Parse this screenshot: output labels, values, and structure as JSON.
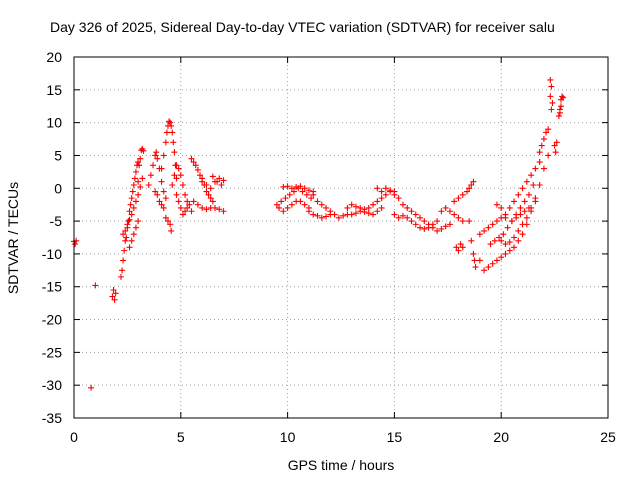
{
  "chart_data": {
    "type": "scatter",
    "title": "Day 326 of 2025, Sidereal Day-to-day VTEC variation (SDTVAR) for receiver salu",
    "xlabel": "GPS time / hours",
    "ylabel": "SDTVAR / TECUs",
    "xlim": [
      0,
      25
    ],
    "ylim": [
      -35,
      20
    ],
    "xticks": [
      0,
      5,
      10,
      15,
      20,
      25
    ],
    "xtick_labels": [
      "0",
      "5",
      "10",
      "15",
      "20",
      "25"
    ],
    "yticks": [
      20,
      15,
      10,
      5,
      0,
      -5,
      -10,
      -15,
      -20,
      -25,
      -30,
      -35
    ],
    "ytick_labels": [
      "20",
      "15",
      "10",
      "5",
      "0",
      "-5",
      "-10",
      "-15",
      "-20",
      "-25",
      "-30",
      "-35"
    ],
    "grid": true,
    "marker": "+",
    "series_color": "#ff0000",
    "series": [
      {
        "name": "SDTVAR",
        "points": [
          [
            0.0,
            -8.1
          ],
          [
            0.05,
            -8.5
          ],
          [
            0.1,
            -8.0
          ],
          [
            0.8,
            -30.4
          ],
          [
            1.0,
            -14.8
          ],
          [
            1.8,
            -16.5
          ],
          [
            1.85,
            -15.5
          ],
          [
            1.9,
            -17.0
          ],
          [
            1.95,
            -16.0
          ],
          [
            2.2,
            -13.5
          ],
          [
            2.25,
            -12.5
          ],
          [
            2.3,
            -11.0
          ],
          [
            2.35,
            -9.5
          ],
          [
            2.4,
            -8.0
          ],
          [
            2.45,
            -7.5
          ],
          [
            2.5,
            -6.0
          ],
          [
            2.55,
            -5.0
          ],
          [
            2.6,
            -3.5
          ],
          [
            2.65,
            -2.5
          ],
          [
            2.7,
            -1.5
          ],
          [
            2.75,
            -0.5
          ],
          [
            2.8,
            0.5
          ],
          [
            2.85,
            1.5
          ],
          [
            2.9,
            2.5
          ],
          [
            2.95,
            3.5
          ],
          [
            3.0,
            4.0
          ],
          [
            2.3,
            -7.0
          ],
          [
            2.4,
            -6.5
          ],
          [
            2.5,
            -5.5
          ],
          [
            2.6,
            -4.8
          ],
          [
            2.7,
            -4.0
          ],
          [
            2.8,
            -3.0
          ],
          [
            2.9,
            -2.0
          ],
          [
            3.0,
            -1.0
          ],
          [
            3.1,
            0.2
          ],
          [
            3.2,
            1.5
          ],
          [
            2.6,
            -9.0
          ],
          [
            2.7,
            -8.0
          ],
          [
            2.8,
            -7.0
          ],
          [
            2.9,
            -6.0
          ],
          [
            3.0,
            -5.0
          ],
          [
            3.0,
            1.0
          ],
          [
            3.05,
            3.5
          ],
          [
            3.1,
            4.5
          ],
          [
            3.15,
            5.8
          ],
          [
            3.2,
            6.0
          ],
          [
            3.25,
            5.7
          ],
          [
            3.5,
            0.5
          ],
          [
            3.6,
            2.0
          ],
          [
            3.7,
            3.5
          ],
          [
            3.8,
            5.0
          ],
          [
            3.85,
            5.5
          ],
          [
            3.9,
            4.5
          ],
          [
            4.0,
            3.0
          ],
          [
            4.1,
            1.0
          ],
          [
            4.2,
            -0.5
          ],
          [
            4.3,
            -1.5
          ],
          [
            3.8,
            -0.5
          ],
          [
            3.9,
            -1.0
          ],
          [
            4.0,
            -2.0
          ],
          [
            4.1,
            -2.5
          ],
          [
            4.2,
            -3.0
          ],
          [
            4.3,
            -4.5
          ],
          [
            4.4,
            -5.0
          ],
          [
            4.5,
            -5.5
          ],
          [
            4.55,
            -6.5
          ],
          [
            4.1,
            3.0
          ],
          [
            4.2,
            5.0
          ],
          [
            4.3,
            7.0
          ],
          [
            4.35,
            8.5
          ],
          [
            4.4,
            9.5
          ],
          [
            4.45,
            10.2
          ],
          [
            4.5,
            10.0
          ],
          [
            4.55,
            9.5
          ],
          [
            4.6,
            8.5
          ],
          [
            4.65,
            7.0
          ],
          [
            4.7,
            5.5
          ],
          [
            4.75,
            3.5
          ],
          [
            4.8,
            1.5
          ],
          [
            4.6,
            0.5
          ],
          [
            4.7,
            2.0
          ],
          [
            4.8,
            3.5
          ],
          [
            4.9,
            3.0
          ],
          [
            5.0,
            2.0
          ],
          [
            5.1,
            0.5
          ],
          [
            5.2,
            -1.0
          ],
          [
            5.3,
            -2.0
          ],
          [
            5.4,
            -2.5
          ],
          [
            5.5,
            -3.5
          ],
          [
            4.8,
            -1.0
          ],
          [
            4.9,
            -2.0
          ],
          [
            5.0,
            -3.0
          ],
          [
            5.1,
            -4.0
          ],
          [
            5.2,
            -3.5
          ],
          [
            5.3,
            -3.0
          ],
          [
            5.5,
            4.5
          ],
          [
            5.6,
            4.0
          ],
          [
            5.7,
            3.5
          ],
          [
            5.8,
            2.8
          ],
          [
            5.9,
            2.0
          ],
          [
            6.0,
            1.5
          ],
          [
            6.1,
            0.5
          ],
          [
            6.2,
            -0.5
          ],
          [
            6.3,
            -1.0
          ],
          [
            6.4,
            -1.5
          ],
          [
            6.5,
            -2.0
          ],
          [
            5.6,
            -2.0
          ],
          [
            5.8,
            -2.5
          ],
          [
            6.0,
            -3.0
          ],
          [
            6.2,
            -3.2
          ],
          [
            6.4,
            -3.0
          ],
          [
            6.6,
            -3.0
          ],
          [
            6.8,
            -3.2
          ],
          [
            7.0,
            -3.5
          ],
          [
            6.0,
            1.0
          ],
          [
            6.2,
            0.5
          ],
          [
            6.4,
            0.0
          ],
          [
            6.6,
            1.0
          ],
          [
            6.8,
            1.5
          ],
          [
            7.0,
            1.2
          ],
          [
            6.5,
            1.8
          ],
          [
            6.7,
            1.0
          ],
          [
            6.9,
            0.5
          ],
          [
            9.5,
            -2.5
          ],
          [
            9.7,
            -2.0
          ],
          [
            9.9,
            -1.5
          ],
          [
            10.1,
            -1.0
          ],
          [
            10.3,
            -0.5
          ],
          [
            10.5,
            0.0
          ],
          [
            10.7,
            -0.5
          ],
          [
            10.9,
            -1.0
          ],
          [
            11.1,
            -1.5
          ],
          [
            9.6,
            -3.0
          ],
          [
            9.8,
            -3.5
          ],
          [
            10.0,
            -3.0
          ],
          [
            10.2,
            -2.5
          ],
          [
            10.4,
            -2.0
          ],
          [
            10.6,
            -2.0
          ],
          [
            10.8,
            -2.5
          ],
          [
            11.0,
            -3.0
          ],
          [
            9.8,
            0.2
          ],
          [
            10.0,
            0.3
          ],
          [
            10.2,
            0.0
          ],
          [
            10.4,
            0.2
          ],
          [
            10.6,
            0.3
          ],
          [
            10.8,
            0.0
          ],
          [
            11.0,
            -0.3
          ],
          [
            11.2,
            -0.5
          ],
          [
            11.2,
            -1.0
          ],
          [
            11.4,
            -2.0
          ],
          [
            11.6,
            -2.5
          ],
          [
            11.8,
            -3.0
          ],
          [
            12.0,
            -3.5
          ],
          [
            12.2,
            -4.0
          ],
          [
            12.4,
            -4.5
          ],
          [
            12.6,
            -4.2
          ],
          [
            12.8,
            -4.0
          ],
          [
            11.0,
            -3.5
          ],
          [
            11.2,
            -4.0
          ],
          [
            11.4,
            -4.2
          ],
          [
            11.6,
            -4.5
          ],
          [
            11.8,
            -4.3
          ],
          [
            12.0,
            -4.0
          ],
          [
            12.8,
            -3.0
          ],
          [
            13.0,
            -2.5
          ],
          [
            13.2,
            -2.8
          ],
          [
            13.4,
            -3.0
          ],
          [
            13.6,
            -3.2
          ],
          [
            13.8,
            -3.0
          ],
          [
            14.0,
            -2.5
          ],
          [
            14.2,
            -2.0
          ],
          [
            14.4,
            -1.5
          ],
          [
            14.6,
            -1.0
          ],
          [
            14.8,
            -0.5
          ],
          [
            15.0,
            -1.0
          ],
          [
            13.0,
            -4.0
          ],
          [
            13.2,
            -3.8
          ],
          [
            13.4,
            -3.5
          ],
          [
            13.6,
            -3.6
          ],
          [
            13.8,
            -3.8
          ],
          [
            14.0,
            -4.0
          ],
          [
            14.2,
            -3.5
          ],
          [
            14.4,
            -3.0
          ],
          [
            14.2,
            0.0
          ],
          [
            14.4,
            -0.5
          ],
          [
            14.6,
            0.0
          ],
          [
            14.8,
            -0.3
          ],
          [
            15.0,
            -0.5
          ],
          [
            15.2,
            -1.5
          ],
          [
            15.4,
            -2.5
          ],
          [
            15.6,
            -3.0
          ],
          [
            15.0,
            -4.0
          ],
          [
            15.2,
            -4.5
          ],
          [
            15.4,
            -4.2
          ],
          [
            15.6,
            -4.5
          ],
          [
            15.8,
            -5.0
          ],
          [
            16.0,
            -5.5
          ],
          [
            16.2,
            -6.0
          ],
          [
            16.4,
            -6.2
          ],
          [
            16.6,
            -6.0
          ],
          [
            16.8,
            -5.5
          ],
          [
            17.0,
            -5.0
          ],
          [
            15.8,
            -3.5
          ],
          [
            16.0,
            -4.0
          ],
          [
            16.2,
            -4.5
          ],
          [
            16.4,
            -5.0
          ],
          [
            16.6,
            -5.5
          ],
          [
            16.8,
            -6.0
          ],
          [
            17.0,
            -6.5
          ],
          [
            17.2,
            -6.2
          ],
          [
            17.4,
            -5.8
          ],
          [
            17.6,
            -5.5
          ],
          [
            17.2,
            -3.5
          ],
          [
            17.4,
            -3.0
          ],
          [
            17.6,
            -3.5
          ],
          [
            17.8,
            -4.0
          ],
          [
            18.0,
            -4.5
          ],
          [
            18.2,
            -5.0
          ],
          [
            17.8,
            -2.0
          ],
          [
            18.0,
            -1.5
          ],
          [
            18.2,
            -1.0
          ],
          [
            18.4,
            -0.5
          ],
          [
            18.5,
            0.0
          ],
          [
            18.6,
            0.5
          ],
          [
            18.7,
            1.0
          ],
          [
            17.9,
            -9.0
          ],
          [
            18.0,
            -9.5
          ],
          [
            18.1,
            -8.5
          ],
          [
            18.2,
            -9.0
          ],
          [
            18.5,
            -5.0
          ],
          [
            18.6,
            -8.0
          ],
          [
            18.7,
            -10.0
          ],
          [
            18.75,
            -11.0
          ],
          [
            18.8,
            -12.0
          ],
          [
            19.0,
            -11.0
          ],
          [
            19.2,
            -12.5
          ],
          [
            19.4,
            -12.0
          ],
          [
            19.6,
            -11.5
          ],
          [
            19.8,
            -11.0
          ],
          [
            20.0,
            -10.5
          ],
          [
            20.2,
            -10.0
          ],
          [
            20.4,
            -9.5
          ],
          [
            20.6,
            -9.0
          ],
          [
            20.8,
            -8.0
          ],
          [
            21.0,
            -7.0
          ],
          [
            21.2,
            -5.5
          ],
          [
            21.4,
            -3.5
          ],
          [
            21.6,
            -1.5
          ],
          [
            21.8,
            0.5
          ],
          [
            22.0,
            3.0
          ],
          [
            22.2,
            5.0
          ],
          [
            19.0,
            -7.0
          ],
          [
            19.2,
            -6.5
          ],
          [
            19.4,
            -6.0
          ],
          [
            19.6,
            -5.5
          ],
          [
            19.8,
            -5.0
          ],
          [
            20.0,
            -4.5
          ],
          [
            20.2,
            -4.0
          ],
          [
            20.4,
            -3.0
          ],
          [
            20.6,
            -2.0
          ],
          [
            20.8,
            -1.0
          ],
          [
            21.0,
            0.0
          ],
          [
            21.2,
            1.0
          ],
          [
            21.4,
            2.0
          ],
          [
            21.6,
            3.0
          ],
          [
            21.8,
            4.0
          ],
          [
            19.5,
            -8.5
          ],
          [
            19.7,
            -8.0
          ],
          [
            19.9,
            -7.5
          ],
          [
            20.1,
            -7.0
          ],
          [
            20.3,
            -6.0
          ],
          [
            20.5,
            -5.0
          ],
          [
            20.7,
            -4.0
          ],
          [
            20.9,
            -3.0
          ],
          [
            21.1,
            -2.0
          ],
          [
            21.3,
            -1.0
          ],
          [
            21.5,
            0.5
          ],
          [
            20.0,
            -8.0
          ],
          [
            20.2,
            -8.5
          ],
          [
            20.4,
            -8.2
          ],
          [
            20.6,
            -7.5
          ],
          [
            20.8,
            -6.5
          ],
          [
            21.0,
            -5.5
          ],
          [
            21.2,
            -4.5
          ],
          [
            21.4,
            -3.0
          ],
          [
            21.6,
            -2.0
          ],
          [
            20.5,
            -5.0
          ],
          [
            20.7,
            -4.5
          ],
          [
            20.9,
            -4.0
          ],
          [
            21.1,
            -3.5
          ],
          [
            21.3,
            -3.0
          ],
          [
            19.8,
            -2.5
          ],
          [
            20.0,
            -3.0
          ],
          [
            20.2,
            -4.5
          ],
          [
            21.8,
            5.5
          ],
          [
            21.9,
            6.5
          ],
          [
            22.0,
            7.5
          ],
          [
            22.1,
            8.5
          ],
          [
            22.2,
            9.0
          ],
          [
            22.3,
            16.5
          ],
          [
            22.35,
            15.5
          ],
          [
            22.3,
            14.0
          ],
          [
            22.4,
            13.0
          ],
          [
            22.35,
            12.0
          ],
          [
            22.5,
            6.5
          ],
          [
            22.55,
            5.5
          ],
          [
            22.6,
            7.0
          ],
          [
            22.7,
            11.0
          ],
          [
            22.75,
            12.0
          ],
          [
            22.8,
            13.5
          ],
          [
            22.85,
            14.0
          ],
          [
            22.9,
            13.8
          ],
          [
            22.8,
            12.5
          ],
          [
            22.75,
            11.5
          ]
        ]
      }
    ]
  }
}
